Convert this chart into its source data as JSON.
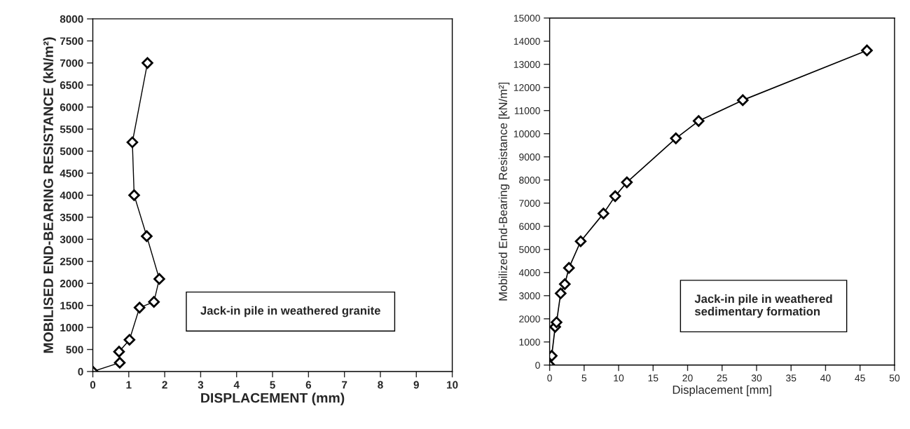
{
  "chart_data": [
    {
      "type": "line",
      "xlabel": "DISPLACEMENT (mm)",
      "ylabel": "MOBILISED END-BEARING RESISTANCE (kN/m²)",
      "annotations": [
        "Jack-in pile in weathered granite"
      ],
      "marker": "diamond",
      "grid": false,
      "legend": false,
      "xlim": [
        0,
        10
      ],
      "xticks": [
        0,
        1,
        2,
        3,
        4,
        5,
        6,
        7,
        8,
        9,
        10
      ],
      "ylim": [
        0,
        8000
      ],
      "yticks": [
        0,
        500,
        1000,
        1500,
        2000,
        2500,
        3000,
        3500,
        4000,
        4500,
        5000,
        5500,
        6000,
        6500,
        7000,
        7500,
        8000
      ],
      "series": [
        {
          "color": "#000000",
          "x": [
            0,
            0.75,
            0.73,
            1.02,
            1.3,
            1.7,
            1.85,
            1.5,
            1.15,
            1.1,
            1.52
          ],
          "values": [
            0,
            200,
            450,
            720,
            1450,
            1580,
            2100,
            3070,
            4000,
            5200,
            7000
          ]
        }
      ]
    },
    {
      "type": "line",
      "xlabel": "Displacement [mm]",
      "ylabel": "Mobilized End-Bearing Resistance [kN/m²]",
      "annotations": [
        "Jack-in pile in weathered\nsedimentary formation"
      ],
      "marker": "diamond",
      "grid": false,
      "legend": false,
      "xlim": [
        0,
        50
      ],
      "xticks": [
        0,
        5,
        10,
        15,
        20,
        25,
        30,
        35,
        40,
        45,
        50
      ],
      "ylim": [
        0,
        15000
      ],
      "yticks": [
        0,
        1000,
        2000,
        3000,
        4000,
        5000,
        6000,
        7000,
        8000,
        9000,
        10000,
        11000,
        12000,
        13000,
        14000,
        15000
      ],
      "series": [
        {
          "color": "#000000",
          "x": [
            0,
            0.3,
            0.8,
            1.0,
            1.6,
            2.2,
            2.8,
            4.5,
            7.8,
            9.5,
            11.2,
            18.3,
            21.6,
            28,
            46
          ],
          "values": [
            0,
            400,
            1650,
            1850,
            3100,
            3500,
            4200,
            5350,
            6550,
            7300,
            7900,
            9800,
            10550,
            11450,
            13600
          ]
        }
      ]
    }
  ]
}
